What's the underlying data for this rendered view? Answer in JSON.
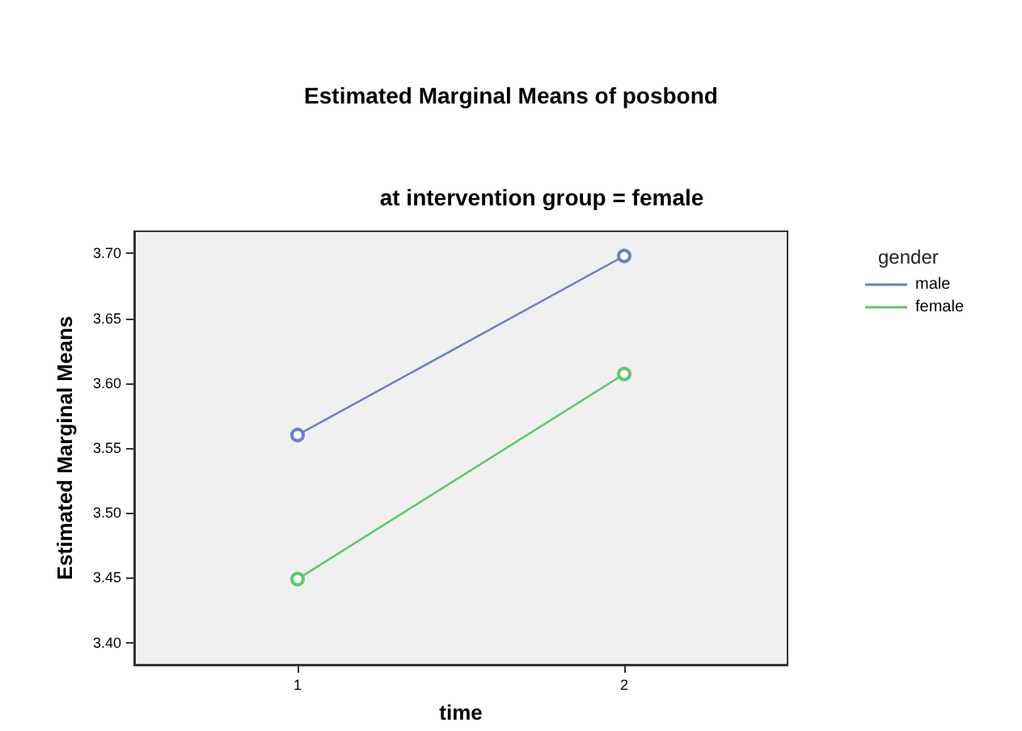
{
  "chart_data": {
    "type": "line",
    "title": "Estimated Marginal Means of posbond",
    "subtitle": "at intervention group = female",
    "xlabel": "time",
    "ylabel": "Estimated Marginal Means",
    "legend_title": "gender",
    "categories": [
      "1",
      "2"
    ],
    "series": [
      {
        "name": "male",
        "color": "#6f7fc4",
        "values": [
          3.56,
          3.698
        ]
      },
      {
        "name": "female",
        "color": "#5ccb6a",
        "values": [
          3.449,
          3.607
        ]
      }
    ],
    "ylim": [
      3.383,
      3.717
    ],
    "yticks": [
      {
        "value": 3.4,
        "label": "3.40"
      },
      {
        "value": 3.45,
        "label": "3.45"
      },
      {
        "value": 3.5,
        "label": "3.50"
      },
      {
        "value": 3.55,
        "label": "3.55"
      },
      {
        "value": 3.6,
        "label": "3.60"
      },
      {
        "value": 3.65,
        "label": "3.65"
      },
      {
        "value": 3.7,
        "label": "3.70"
      }
    ],
    "grid": false,
    "legend": "top right",
    "marker": "circle",
    "line_style": "solid"
  }
}
